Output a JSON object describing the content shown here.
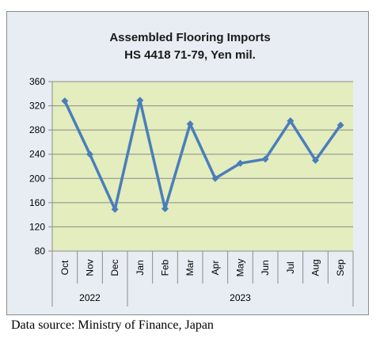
{
  "chart_data": {
    "type": "line",
    "title": "Assembled Flooring Imports",
    "subtitle": "HS 4418 71-79, Yen mil.",
    "categories": [
      "Oct",
      "Nov",
      "Dec",
      "Jan",
      "Feb",
      "Mar",
      "Apr",
      "May",
      "Jun",
      "Jul",
      "Aug",
      "Sep"
    ],
    "year_groups": [
      {
        "label": "2022",
        "count": 3
      },
      {
        "label": "2023",
        "count": 9
      }
    ],
    "series": [
      {
        "values": [
          328,
          240,
          149,
          329,
          150,
          290,
          200,
          225,
          232,
          295,
          230,
          288
        ]
      }
    ],
    "ylim": [
      80,
      360
    ],
    "yticks": [
      80,
      120,
      160,
      200,
      240,
      280,
      320,
      360
    ],
    "grid": true,
    "colors": {
      "plot_background": "#e3edbd",
      "chart_background": "#e7edf2",
      "line": "#4a7ebb",
      "grid": "#8c8c8c",
      "border": "#8c8c8c"
    }
  },
  "footer": {
    "source_text": "Data source: Ministry of Finance, Japan"
  }
}
